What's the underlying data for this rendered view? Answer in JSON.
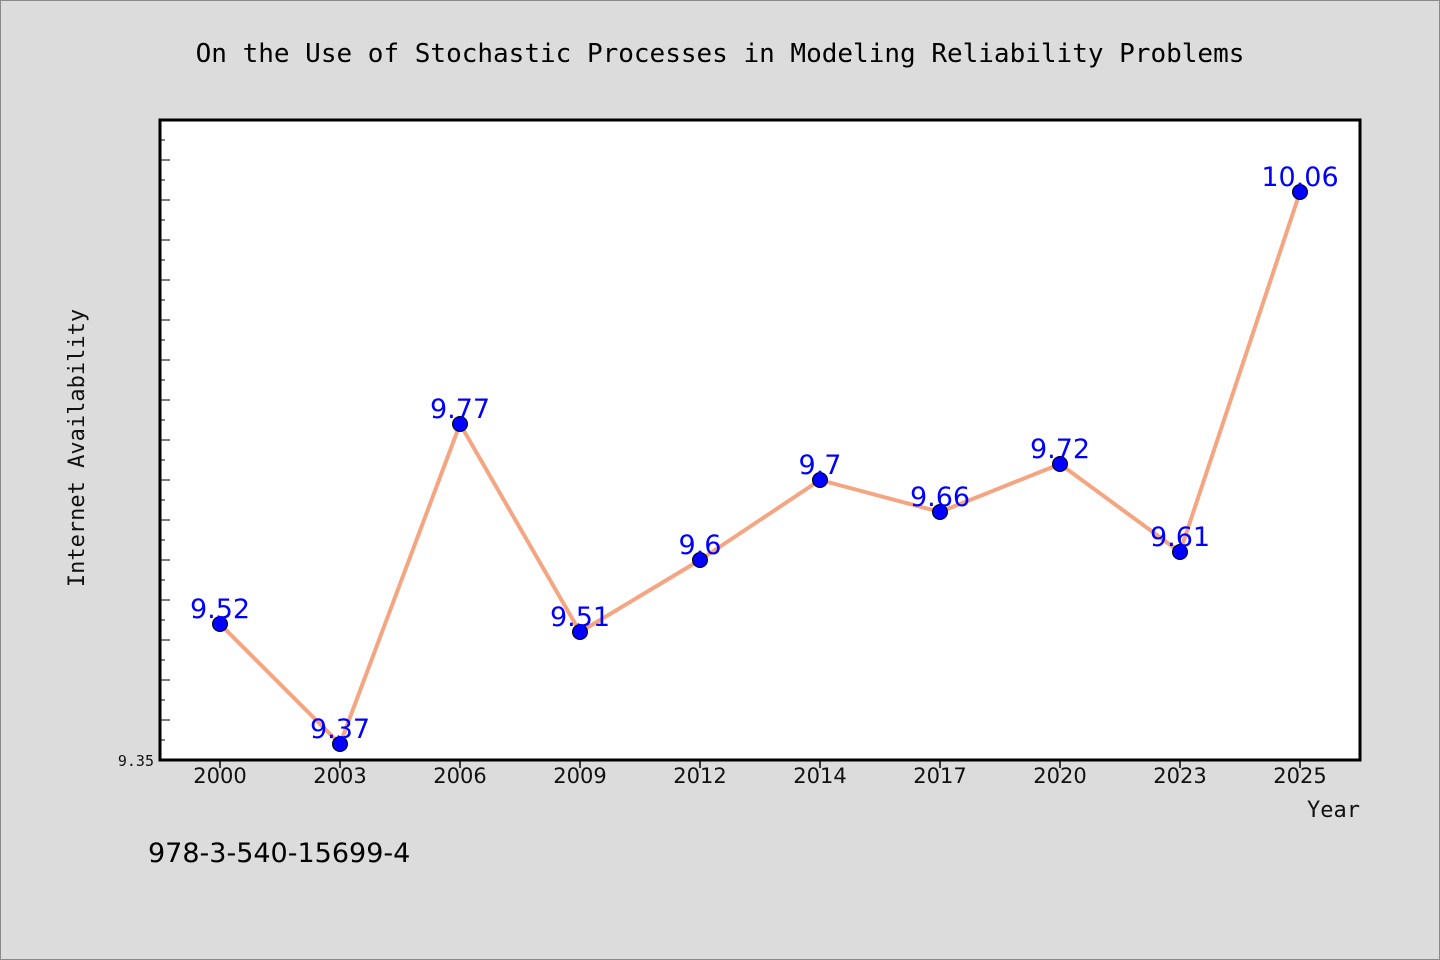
{
  "chart_data": {
    "type": "line",
    "title": "On the Use of Stochastic Processes in Modeling Reliability Problems",
    "xlabel": "Year",
    "ylabel": "Internet Availability",
    "categories": [
      "2000",
      "2003",
      "2006",
      "2009",
      "2012",
      "2014",
      "2017",
      "2020",
      "2023",
      "2025"
    ],
    "series": [
      {
        "values": [
          9.52,
          9.37,
          9.77,
          9.51,
          9.6,
          9.7,
          9.66,
          9.72,
          9.61,
          10.06
        ],
        "labels": [
          "9.52",
          "9.37",
          "9.77",
          "9.51",
          "9.6",
          "9.7",
          "9.66",
          "9.72",
          "9.61",
          "10.06"
        ],
        "line_color": "#f4a582",
        "marker_color": "#0000ff"
      }
    ],
    "ylim": [
      9.35,
      10.15
    ],
    "ytick_labels": [
      "9.35"
    ],
    "grid": false,
    "legend": "none"
  },
  "footer_text": "978-3-540-15699-4"
}
